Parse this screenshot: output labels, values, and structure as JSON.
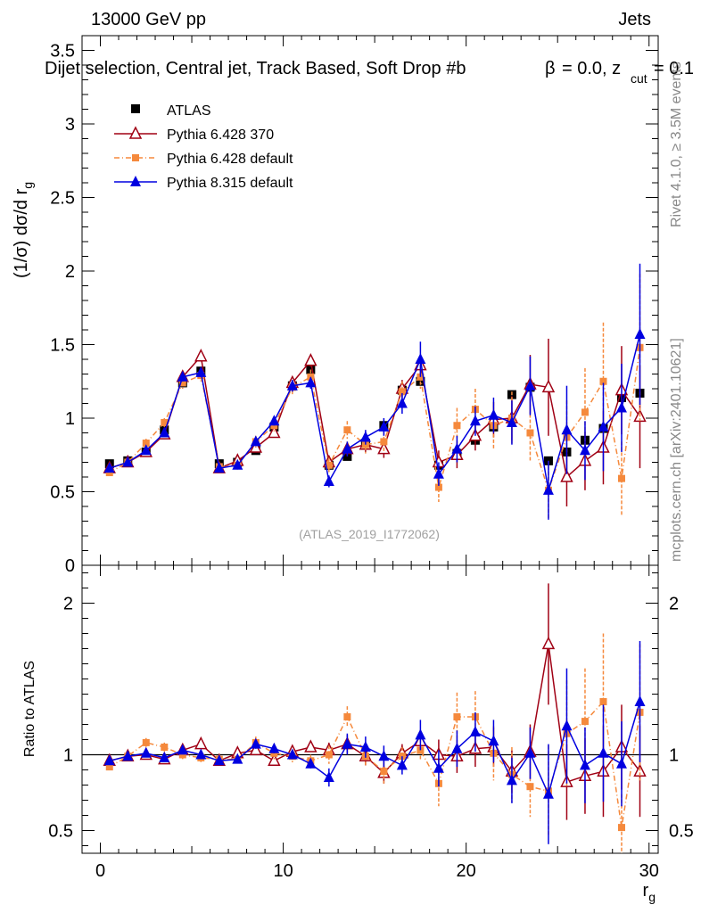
{
  "header": {
    "left": "13000 GeV pp",
    "right": "Jets",
    "subtitle": "Dijet selection, Central jet, Track Based, Soft Drop #b",
    "subtitle_eq": "= 0.0, z",
    "subtitle_cut": "cut",
    "subtitle_end": "= 0.1"
  },
  "side": {
    "rivet": "Rivet 4.1.0, ≥ 3.5M events",
    "mcplots": "mcplots.cern.ch [arXiv:2401.10621]"
  },
  "analysis_tag": "(ATLAS_2019_I1772062)",
  "colors": {
    "atlas": "#000000",
    "p6_370": "#a00014",
    "p6_def": "#f5893c",
    "p8_def": "#0000e0",
    "refline": "#000000"
  },
  "chart_data": [
    {
      "id": "main",
      "type": "scatter",
      "ylabel": "(1/σ) dσ/d r",
      "ylabel_sub": "g",
      "xlim": [
        -1,
        30.5
      ],
      "ylim": [
        0,
        3.6
      ],
      "yticks": [
        0,
        0.5,
        1,
        1.5,
        2,
        2.5,
        3,
        3.5
      ],
      "ytick_labels": [
        "0",
        "0.5",
        "1",
        "1.5",
        "2",
        "2.5",
        "3",
        "3.5"
      ],
      "legend": [
        {
          "key": "atlas",
          "label": "ATLAS"
        },
        {
          "key": "p6_370",
          "label": "Pythia 6.428 370"
        },
        {
          "key": "p6_def",
          "label": "Pythia 6.428 default"
        },
        {
          "key": "p8_def",
          "label": "Pythia 8.315 default"
        }
      ],
      "x": [
        0.5,
        1.5,
        2.5,
        3.5,
        4.5,
        5.5,
        6.5,
        7.5,
        8.5,
        9.5,
        10.5,
        11.5,
        12.5,
        13.5,
        14.5,
        15.5,
        16.5,
        17.5,
        18.5,
        19.5,
        20.5,
        21.5,
        22.5,
        23.5,
        24.5,
        25.5,
        26.5,
        27.5,
        28.5,
        29.5
      ],
      "series": [
        {
          "key": "atlas",
          "name": "ATLAS",
          "values": [
            0.69,
            0.71,
            0.77,
            0.92,
            1.24,
            1.32,
            0.69,
            0.7,
            0.78,
            0.94,
            1.22,
            1.33,
            0.68,
            0.74,
            0.83,
            0.95,
            1.19,
            1.25,
            0.68,
            0.76,
            0.85,
            0.94,
            1.16,
            1.21,
            0.71,
            0.77,
            0.85,
            0.93,
            1.14,
            1.17
          ],
          "errors": [
            0.01,
            0.01,
            0.01,
            0.01,
            0.01,
            0.01,
            0.01,
            0.01,
            0.01,
            0.01,
            0.01,
            0.01,
            0.01,
            0.01,
            0.01,
            0.01,
            0.01,
            0.02,
            0.01,
            0.01,
            0.01,
            0.01,
            0.02,
            0.02,
            0.02,
            0.02,
            0.02,
            0.02,
            0.03,
            0.03
          ]
        },
        {
          "key": "p6_370",
          "name": "Pythia 6.428 370",
          "values": [
            0.66,
            0.7,
            0.77,
            0.89,
            1.28,
            1.42,
            0.66,
            0.71,
            0.8,
            0.9,
            1.24,
            1.39,
            0.7,
            0.79,
            0.82,
            0.79,
            1.2,
            1.36,
            0.7,
            0.75,
            0.88,
            0.99,
            1.0,
            1.23,
            1.21,
            0.6,
            0.71,
            0.8,
            1.19,
            1.01
          ],
          "errors": [
            0.02,
            0.02,
            0.02,
            0.02,
            0.03,
            0.03,
            0.02,
            0.02,
            0.03,
            0.03,
            0.04,
            0.04,
            0.04,
            0.05,
            0.05,
            0.06,
            0.06,
            0.07,
            0.08,
            0.09,
            0.1,
            0.12,
            0.15,
            0.2,
            0.33,
            0.2,
            0.2,
            0.25,
            0.3,
            0.35
          ]
        },
        {
          "key": "p6_def",
          "name": "Pythia 6.428 default",
          "values": [
            0.63,
            0.7,
            0.83,
            0.97,
            1.24,
            1.29,
            0.67,
            0.68,
            0.84,
            0.95,
            1.21,
            1.28,
            0.68,
            0.92,
            0.82,
            0.84,
            1.18,
            1.28,
            0.53,
            0.95,
            1.06,
            0.95,
            1.0,
            0.9,
            0.51,
            0.87,
            1.04,
            1.25,
            0.59,
            1.48
          ],
          "errors": [
            0.02,
            0.02,
            0.03,
            0.03,
            0.04,
            0.04,
            0.03,
            0.03,
            0.04,
            0.04,
            0.05,
            0.05,
            0.05,
            0.06,
            0.06,
            0.07,
            0.07,
            0.08,
            0.1,
            0.12,
            0.14,
            0.16,
            0.18,
            0.2,
            0.2,
            0.25,
            0.3,
            0.4,
            0.25,
            0.5
          ]
        },
        {
          "key": "p8_def",
          "name": "Pythia 8.315 default",
          "values": [
            0.66,
            0.7,
            0.78,
            0.9,
            1.28,
            1.31,
            0.66,
            0.68,
            0.84,
            0.98,
            1.22,
            1.24,
            0.57,
            0.79,
            0.87,
            0.94,
            1.1,
            1.4,
            0.62,
            0.79,
            0.98,
            1.02,
            0.97,
            1.22,
            0.51,
            0.92,
            0.78,
            0.94,
            1.07,
            1.57
          ],
          "errors": [
            0.02,
            0.02,
            0.02,
            0.02,
            0.03,
            0.03,
            0.02,
            0.02,
            0.03,
            0.03,
            0.04,
            0.04,
            0.04,
            0.05,
            0.05,
            0.06,
            0.07,
            0.12,
            0.08,
            0.09,
            0.1,
            0.12,
            0.15,
            0.2,
            0.2,
            0.3,
            0.2,
            0.3,
            0.3,
            0.48
          ]
        }
      ]
    },
    {
      "id": "ratio",
      "type": "scatter",
      "ylabel": "Ratio to ATLAS",
      "xlabel": "r",
      "xlabel_sub": "g",
      "xlim": [
        -1,
        30.5
      ],
      "ylim": [
        0.35,
        2.25
      ],
      "xticks": [
        0,
        10,
        20,
        30
      ],
      "xtick_labels": [
        "0",
        "10",
        "20",
        "30"
      ],
      "yticks": [
        0.5,
        1,
        2
      ],
      "ytick_labels": [
        "0.5",
        "1",
        "2"
      ],
      "reference": 1,
      "x": [
        0.5,
        1.5,
        2.5,
        3.5,
        4.5,
        5.5,
        6.5,
        7.5,
        8.5,
        9.5,
        10.5,
        11.5,
        12.5,
        13.5,
        14.5,
        15.5,
        16.5,
        17.5,
        18.5,
        19.5,
        20.5,
        21.5,
        22.5,
        23.5,
        24.5,
        25.5,
        26.5,
        27.5,
        28.5,
        29.5
      ],
      "series": [
        {
          "key": "p6_370",
          "name": "Pythia 6.428 370",
          "values": [
            0.96,
            0.99,
            1.0,
            0.97,
            1.03,
            1.07,
            0.96,
            1.01,
            1.03,
            0.96,
            1.02,
            1.05,
            1.03,
            1.07,
            0.99,
            0.88,
            1.01,
            1.09,
            1.0,
            0.99,
            1.04,
            1.05,
            0.89,
            1.02,
            1.73,
            0.82,
            0.86,
            0.89,
            1.05,
            0.89
          ],
          "errors": [
            0.02,
            0.02,
            0.02,
            0.02,
            0.02,
            0.02,
            0.02,
            0.02,
            0.03,
            0.03,
            0.03,
            0.03,
            0.05,
            0.06,
            0.06,
            0.07,
            0.06,
            0.07,
            0.1,
            0.11,
            0.12,
            0.13,
            0.14,
            0.18,
            0.4,
            0.25,
            0.25,
            0.3,
            0.28,
            0.3
          ]
        },
        {
          "key": "p6_def",
          "name": "Pythia 6.428 default",
          "values": [
            0.92,
            0.99,
            1.08,
            1.05,
            1.0,
            0.98,
            0.97,
            0.97,
            1.08,
            1.01,
            0.99,
            0.96,
            1.0,
            1.25,
            0.99,
            0.89,
            0.99,
            1.03,
            0.81,
            1.25,
            1.25,
            1.01,
            0.87,
            0.79,
            0.76,
            1.14,
            1.22,
            1.35,
            0.52,
            1.28
          ],
          "errors": [
            0.02,
            0.02,
            0.03,
            0.03,
            0.03,
            0.03,
            0.03,
            0.03,
            0.04,
            0.04,
            0.04,
            0.04,
            0.06,
            0.07,
            0.07,
            0.08,
            0.06,
            0.07,
            0.15,
            0.16,
            0.17,
            0.18,
            0.18,
            0.2,
            0.3,
            0.35,
            0.35,
            0.45,
            0.22,
            0.45
          ]
        },
        {
          "key": "p8_def",
          "name": "Pythia 8.315 default",
          "values": [
            0.96,
            0.99,
            1.01,
            0.98,
            1.03,
            1.0,
            0.96,
            0.97,
            1.07,
            1.04,
            1.0,
            0.94,
            0.85,
            1.07,
            1.05,
            0.99,
            0.93,
            1.13,
            0.91,
            1.04,
            1.15,
            1.09,
            0.83,
            1.01,
            0.74,
            1.19,
            0.93,
            1.01,
            0.94,
            1.35
          ],
          "errors": [
            0.02,
            0.02,
            0.02,
            0.02,
            0.02,
            0.02,
            0.02,
            0.02,
            0.03,
            0.03,
            0.03,
            0.03,
            0.06,
            0.07,
            0.07,
            0.07,
            0.06,
            0.1,
            0.12,
            0.12,
            0.13,
            0.14,
            0.15,
            0.17,
            0.33,
            0.38,
            0.25,
            0.32,
            0.28,
            0.4
          ]
        }
      ]
    }
  ]
}
